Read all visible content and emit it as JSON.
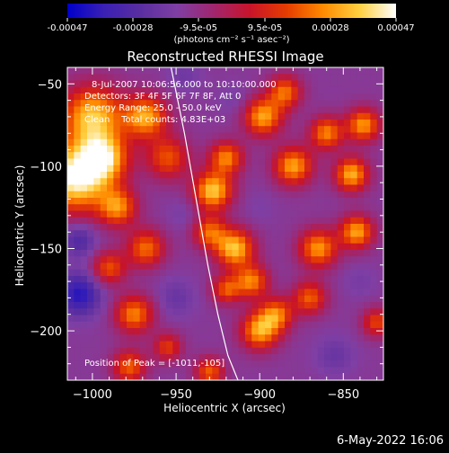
{
  "colorbar": {
    "ticks": [
      "-0.00047",
      "-0.00028",
      "-9.5e-05",
      "9.5e-05",
      "0.00028",
      "0.00047"
    ],
    "unit_label": "(photons cm⁻² s⁻¹ asec⁻²)",
    "range": [
      -0.00047,
      0.00047
    ],
    "colors": [
      "#0000c8",
      "#3a20b4",
      "#5a2ea0",
      "#7f3fa4",
      "#a0266e",
      "#c8142a",
      "#e63c00",
      "#ff8a00",
      "#ffd040",
      "#ffffff"
    ]
  },
  "plot": {
    "title": "Reconstructed RHESSI Image",
    "info_lines": [
      "8-Jul-2007 10:06:56.000 to 10:10:00.000",
      "Detectors: 3F 4F 5F 6F 7F 8F, Att 0",
      "Energy Range: 25.0 - 50.0 keV",
      "Clean    Total counts: 4.83E+03"
    ],
    "peak_label": "Position of Peak = [-1011,-105]"
  },
  "timestamp": "6-May-2022 16:06",
  "chart_data": {
    "type": "heatmap",
    "title": "Reconstructed RHESSI Image",
    "xlabel": "Heliocentric X (arcsec)",
    "ylabel": "Heliocentric Y (arcsec)",
    "x_range": [
      -1015,
      -826
    ],
    "y_range": [
      -230,
      -40
    ],
    "x_ticks": [
      -1000,
      -950,
      -900,
      -850
    ],
    "y_ticks": [
      -50,
      -100,
      -150,
      -200
    ],
    "x_tick_labels": [
      "−1000",
      "−950",
      "−900",
      "−850"
    ],
    "y_tick_labels": [
      "−50",
      "−100",
      "−150",
      "−200"
    ],
    "colorbar_range": [
      -0.00047,
      0.00047
    ],
    "peak_position": [
      -1011,
      -105
    ],
    "limb_curve": {
      "x": [
        -953,
        -945,
        -938,
        -931,
        -925,
        -919,
        -913
      ],
      "y": [
        -40,
        -80,
        -120,
        -160,
        -190,
        -215,
        -230
      ]
    },
    "blobs": [
      {
        "x": -1010,
        "y": -107,
        "value": 0.00047,
        "sigma": 14
      },
      {
        "x": -1000,
        "y": -70,
        "value": 0.00035,
        "sigma": 13
      },
      {
        "x": -993,
        "y": -95,
        "value": 0.0003,
        "sigma": 10
      },
      {
        "x": -968,
        "y": -70,
        "value": 0.0003,
        "sigma": 9
      },
      {
        "x": -955,
        "y": -95,
        "value": 0.00018,
        "sigma": 9
      },
      {
        "x": -985,
        "y": -125,
        "value": 0.00025,
        "sigma": 8
      },
      {
        "x": -968,
        "y": -150,
        "value": 0.00022,
        "sigma": 8
      },
      {
        "x": -990,
        "y": -162,
        "value": 0.00018,
        "sigma": 7
      },
      {
        "x": -975,
        "y": -190,
        "value": 0.00025,
        "sigma": 8
      },
      {
        "x": -978,
        "y": -222,
        "value": 0.0002,
        "sigma": 7
      },
      {
        "x": -928,
        "y": -115,
        "value": 0.00036,
        "sigma": 8
      },
      {
        "x": -920,
        "y": -95,
        "value": 0.00025,
        "sigma": 7
      },
      {
        "x": -930,
        "y": -140,
        "value": 0.0002,
        "sigma": 7
      },
      {
        "x": -915,
        "y": -150,
        "value": 0.00035,
        "sigma": 8
      },
      {
        "x": -905,
        "y": -170,
        "value": 0.00025,
        "sigma": 7
      },
      {
        "x": -920,
        "y": -175,
        "value": 0.00018,
        "sigma": 6
      },
      {
        "x": -898,
        "y": -70,
        "value": 0.0003,
        "sigma": 8
      },
      {
        "x": -885,
        "y": -55,
        "value": 0.00022,
        "sigma": 7
      },
      {
        "x": -880,
        "y": -100,
        "value": 0.0003,
        "sigma": 8
      },
      {
        "x": -860,
        "y": -80,
        "value": 0.00025,
        "sigma": 7
      },
      {
        "x": -845,
        "y": -105,
        "value": 0.00032,
        "sigma": 7
      },
      {
        "x": -838,
        "y": -75,
        "value": 0.00028,
        "sigma": 7
      },
      {
        "x": -842,
        "y": -140,
        "value": 0.0003,
        "sigma": 7
      },
      {
        "x": -865,
        "y": -150,
        "value": 0.00028,
        "sigma": 8
      },
      {
        "x": -870,
        "y": -180,
        "value": 0.0002,
        "sigma": 7
      },
      {
        "x": -900,
        "y": -200,
        "value": 0.0003,
        "sigma": 8
      },
      {
        "x": -890,
        "y": -190,
        "value": 0.00022,
        "sigma": 7
      },
      {
        "x": -830,
        "y": -195,
        "value": 0.00016,
        "sigma": 6
      },
      {
        "x": -955,
        "y": -210,
        "value": 0.00014,
        "sigma": 6
      },
      {
        "x": -930,
        "y": -225,
        "value": 0.0002,
        "sigma": 6
      },
      {
        "x": -1008,
        "y": -178,
        "value": -0.0004,
        "sigma": 9
      },
      {
        "x": -1008,
        "y": -145,
        "value": -0.0003,
        "sigma": 7
      },
      {
        "x": -950,
        "y": -180,
        "value": -0.00022,
        "sigma": 8
      },
      {
        "x": -945,
        "y": -130,
        "value": -0.00018,
        "sigma": 7
      },
      {
        "x": -945,
        "y": -45,
        "value": -0.0002,
        "sigma": 7
      },
      {
        "x": -915,
        "y": -60,
        "value": -0.00018,
        "sigma": 7
      },
      {
        "x": -855,
        "y": -215,
        "value": -0.00022,
        "sigma": 8
      },
      {
        "x": -840,
        "y": -170,
        "value": -0.00018,
        "sigma": 7
      },
      {
        "x": -900,
        "y": -125,
        "value": -0.00016,
        "sigma": 7
      },
      {
        "x": -960,
        "y": -160,
        "value": -0.00014,
        "sigma": 6
      }
    ]
  }
}
